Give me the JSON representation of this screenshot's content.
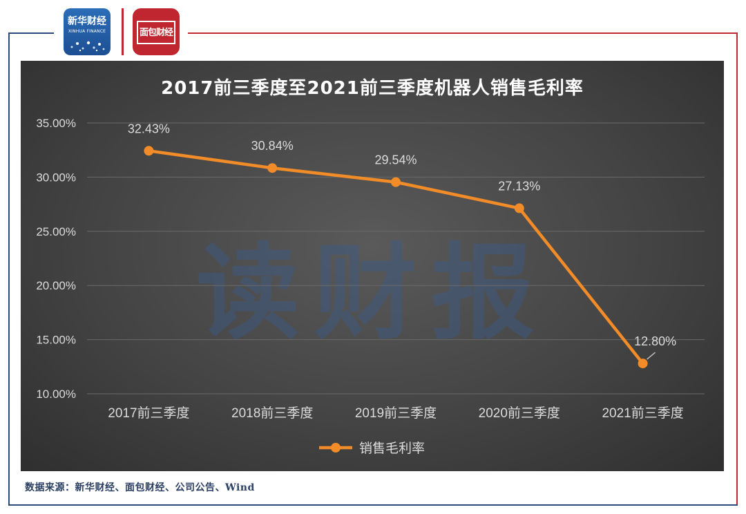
{
  "logos": {
    "xinhua_cn": "新华财经",
    "xinhua_en": "XINHUA FINANCE",
    "mianbao": "面包财经"
  },
  "watermark": "读财报",
  "footer": {
    "source": "数据来源：新华财经、面包财经、公司公告、Wind"
  },
  "colors": {
    "line": "#f28c28",
    "frame_blue": "#2b4a7c",
    "frame_red": "#c0262f"
  },
  "chart_data": {
    "type": "line",
    "title": "2017前三季度至2021前三季度机器人销售毛利率",
    "categories": [
      "2017前三季度",
      "2018前三季度",
      "2019前三季度",
      "2020前三季度",
      "2021前三季度"
    ],
    "series": [
      {
        "name": "销售毛利率",
        "values": [
          32.43,
          30.84,
          29.54,
          27.13,
          12.8
        ],
        "labels": [
          "32.43%",
          "30.84%",
          "29.54%",
          "27.13%",
          "12.80%"
        ]
      }
    ],
    "ylim": [
      10,
      35
    ],
    "yticks": [
      10,
      15,
      20,
      25,
      30,
      35
    ],
    "ytick_labels": [
      "10.00%",
      "15.00%",
      "20.00%",
      "25.00%",
      "30.00%",
      "35.00%"
    ],
    "grid": true,
    "legend_position": "bottom"
  }
}
